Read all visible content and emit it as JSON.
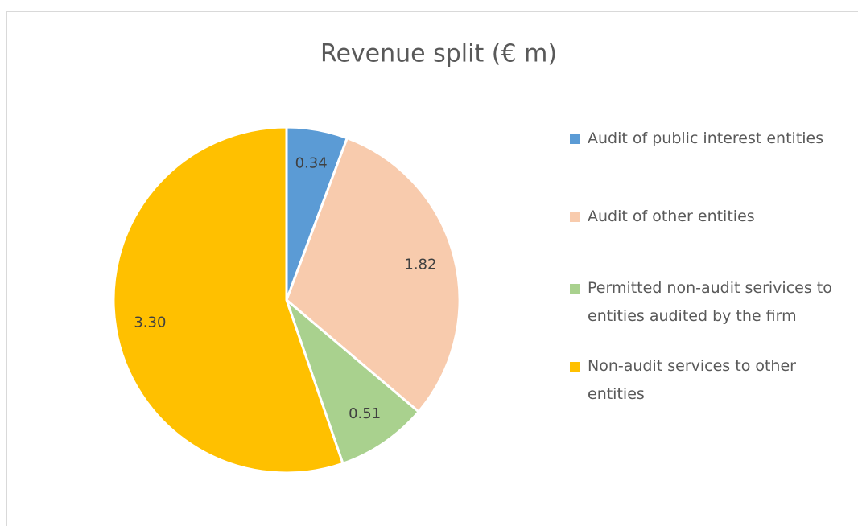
{
  "chart_data": {
    "type": "pie",
    "title": "Revenue split (€ m)",
    "categories": [
      "Audit of public interest entities",
      "Audit of other entities",
      "Permitted non-audit serivices to entities audited by the firm",
      "Non-audit services to other entities"
    ],
    "values": [
      0.34,
      1.82,
      0.51,
      3.3
    ],
    "value_labels": [
      "0.34",
      "1.82",
      "0.51",
      "3.30"
    ],
    "colors": [
      "#5b9bd5",
      "#f8cbad",
      "#a9d18e",
      "#ffc000"
    ],
    "legend": "right"
  }
}
